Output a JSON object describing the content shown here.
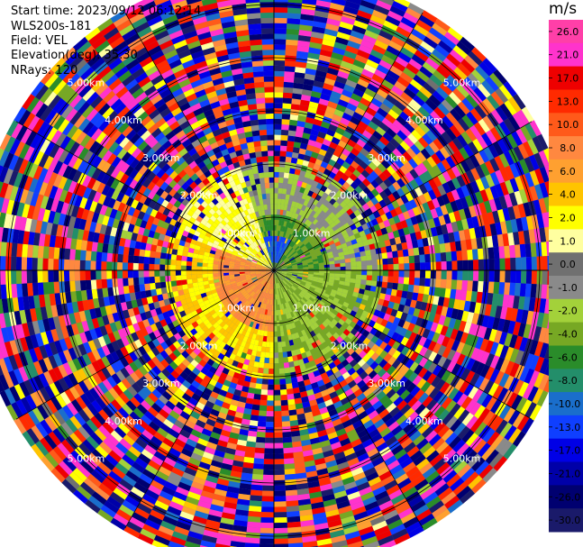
{
  "header": {
    "start_time": "Start time: 2023/09/12 06:12:14",
    "instrument": "WLS200s-181",
    "field": "Field: VEL",
    "elevation": "Elevation(deg): 35.30",
    "nrays": "NRays: 120"
  },
  "colorbar": {
    "unit": "m/s",
    "levels": [
      26.0,
      21.0,
      17.0,
      13.0,
      10.0,
      8.0,
      6.0,
      4.0,
      2.0,
      1.0,
      0.0,
      -1.0,
      -2.0,
      -4.0,
      -6.0,
      -8.0,
      -10.0,
      -13.0,
      -17.0,
      -21.0,
      -26.0,
      -30.0
    ],
    "tick_labels": [
      "26.0",
      "21.0",
      "17.0",
      "13.0",
      "10.0",
      "8.0",
      "6.0",
      "4.0",
      "2.0",
      "1.0",
      "0.0",
      "-1.0",
      "-2.0",
      "-4.0",
      "-6.0",
      "-8.0",
      "-10.0",
      "-13.0",
      "-17.0",
      "-21.0",
      "-26.0",
      "-30.0"
    ],
    "colors": [
      "#ff3fa8",
      "#ff33cc",
      "#ee0000",
      "#ff2a00",
      "#ff5a1a",
      "#ff8840",
      "#ffa030",
      "#ffc400",
      "#ffff00",
      "#ffffa0",
      "#707070",
      "#8a8a8a",
      "#a3d13a",
      "#77a824",
      "#2a8c2a",
      "#238e6a",
      "#1a6ecb",
      "#0f3fff",
      "#0000e6",
      "#0000a8",
      "#000070",
      "#1a1a6a"
    ]
  },
  "chart_data": {
    "type": "heatmap",
    "projection": "polar-ppi",
    "range_rings_km": [
      1.0,
      2.0,
      3.0,
      4.0,
      5.0
    ],
    "ring_labels": [
      "1.00km",
      "2.00km",
      "3.00km",
      "4.00km",
      "5.00km"
    ],
    "nrays": 120,
    "max_range_km": 5.6,
    "spoke_azimuths_deg": [
      0,
      30,
      60,
      90,
      120,
      150,
      180,
      210,
      240,
      270,
      300,
      330
    ],
    "field": "VEL",
    "unit": "m/s",
    "vmin": -30.0,
    "vmax": 26.0,
    "near_field_pattern": [
      {
        "sector": "south-west",
        "range_km": [
          0,
          1.6
        ],
        "value": 8.0
      },
      {
        "sector": "north-west",
        "range_km": [
          0,
          1.6
        ],
        "value": 2.0
      },
      {
        "sector": "north-east",
        "range_km": [
          0,
          1.0
        ],
        "value": -4.0
      },
      {
        "sector": "south-east",
        "range_km": [
          0,
          1.6
        ],
        "value": -2.0
      },
      {
        "sector": "north",
        "range_km": [
          0.5,
          1.0
        ],
        "value": -10.0
      }
    ]
  }
}
